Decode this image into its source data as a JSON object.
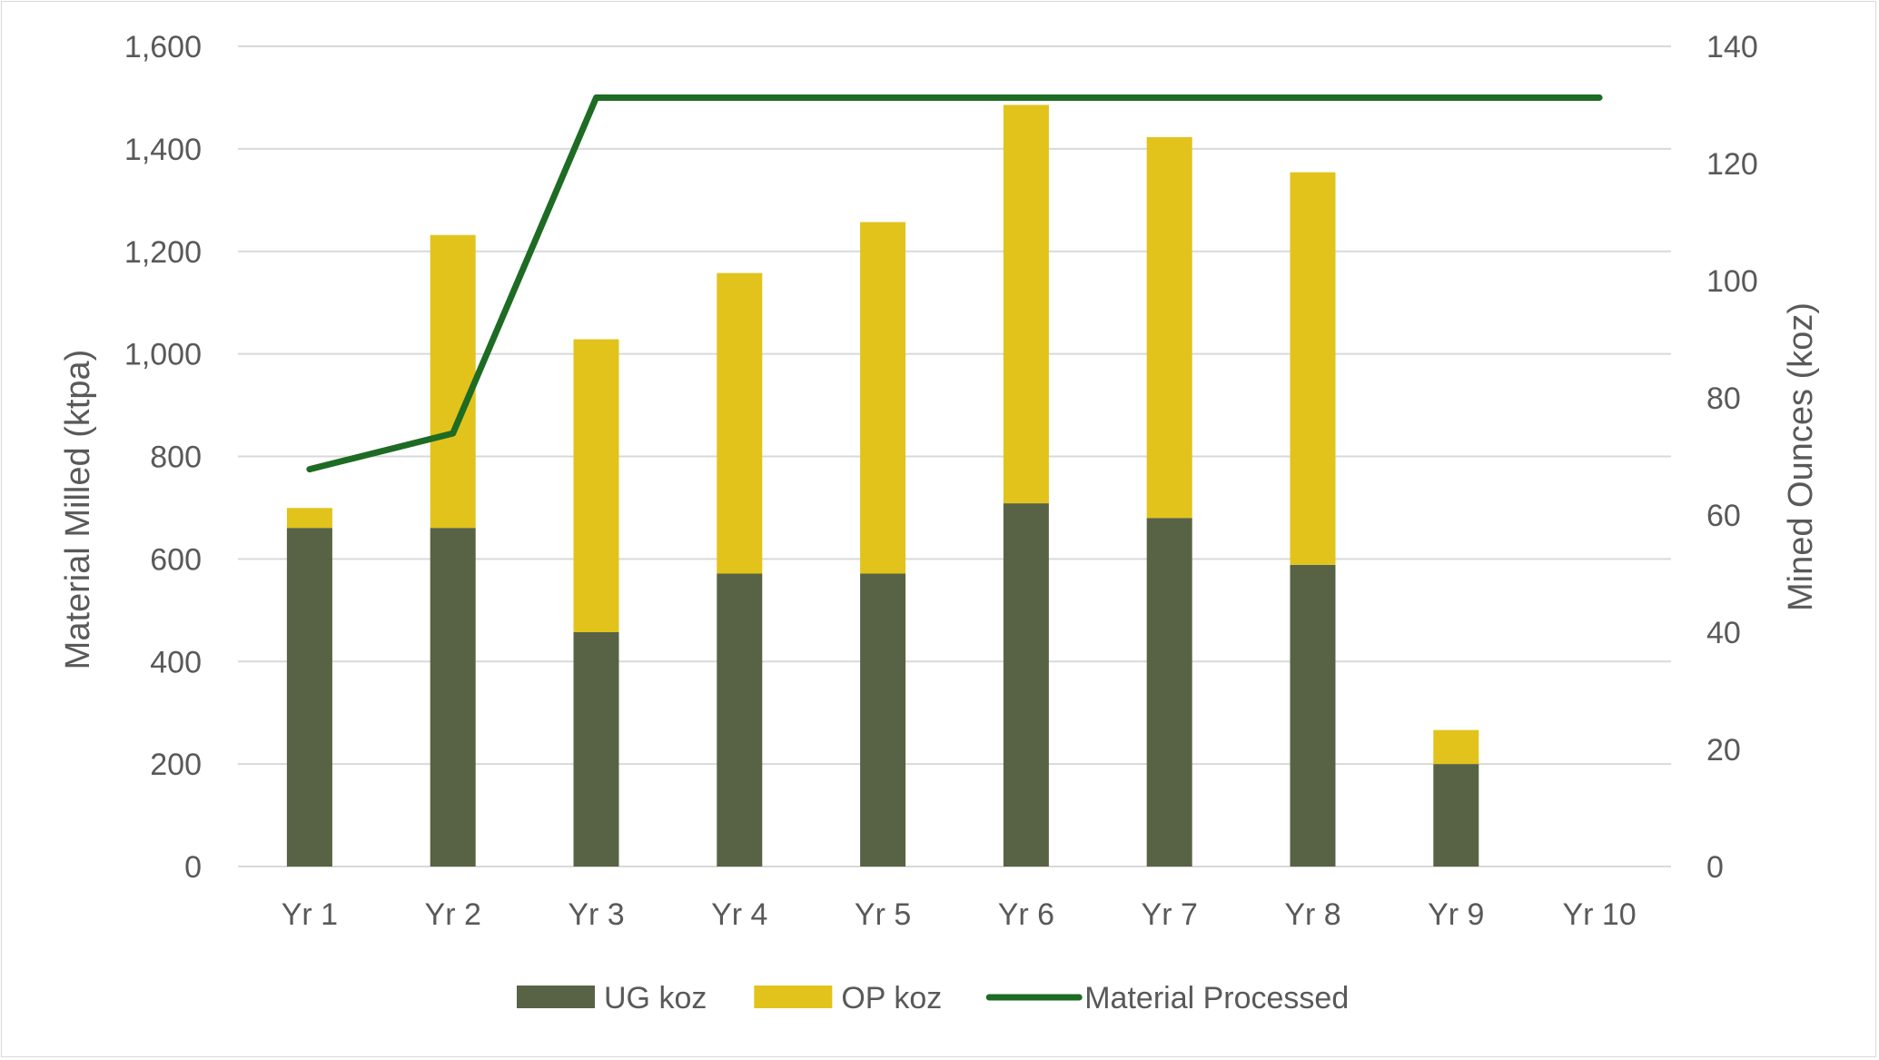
{
  "chart_data": {
    "type": "bar",
    "stacked": true,
    "categories": [
      "Yr 1",
      "Yr 2",
      "Yr 3",
      "Yr 4",
      "Yr 5",
      "Yr 6",
      "Yr 7",
      "Yr 8",
      "Yr 9",
      "Yr 10"
    ],
    "series": [
      {
        "name": "UG koz",
        "axis": "right",
        "type": "bar",
        "color": "#586345",
        "values": [
          57.8,
          57.8,
          40.0,
          50.0,
          50.0,
          62.0,
          59.5,
          51.5,
          17.5,
          0
        ]
      },
      {
        "name": "OP koz",
        "axis": "right",
        "type": "bar",
        "color": "#e2c31b",
        "values": [
          3.4,
          50.0,
          50.0,
          51.3,
          60.0,
          68.0,
          65.0,
          67.0,
          5.8,
          0
        ]
      },
      {
        "name": "Material Processed",
        "axis": "left",
        "type": "line",
        "color": "#1e6b24",
        "values": [
          775,
          845,
          1500,
          1500,
          1500,
          1500,
          1500,
          1500,
          1500,
          1500
        ]
      }
    ],
    "ylabel": "Material Milled (ktpa)",
    "y2label": "Mined Ounces (koz)",
    "ylim": [
      0,
      1600
    ],
    "y2lim": [
      0,
      140
    ],
    "yticks": [
      "0",
      "200",
      "400",
      "600",
      "800",
      "1,000",
      "1,200",
      "1,400",
      "1,600"
    ],
    "y2ticks": [
      "0",
      "20",
      "40",
      "60",
      "80",
      "100",
      "120",
      "140"
    ],
    "grid": true,
    "legend": "bottom"
  }
}
